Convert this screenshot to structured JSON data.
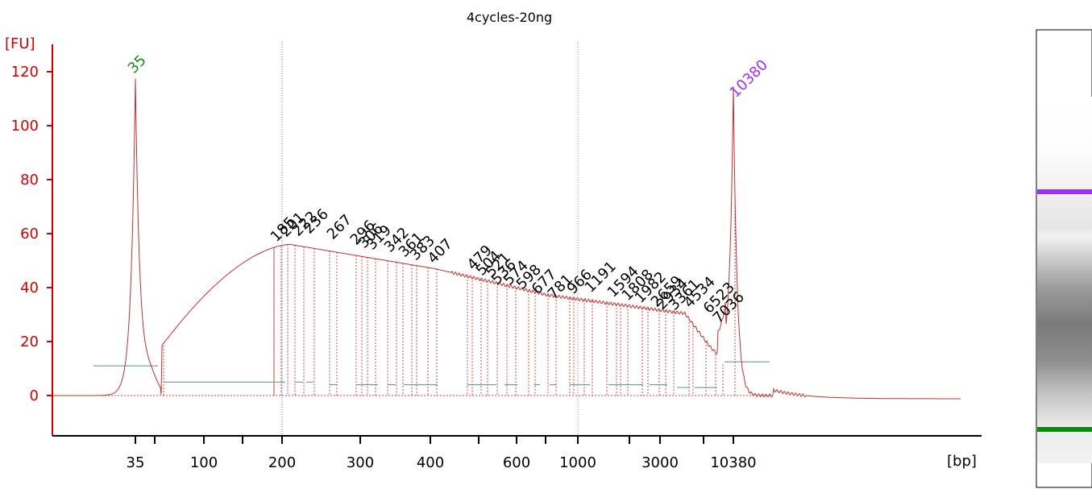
{
  "chart_data": {
    "type": "line",
    "title": "4cycles-20ng",
    "ylabel": "[FU]",
    "xlabel": "[bp]",
    "ylim": [
      -14,
      128
    ],
    "y_ticks": [
      0,
      20,
      40,
      60,
      80,
      100,
      120
    ],
    "x_tick_labels": [
      "35",
      "100",
      "200",
      "300",
      "400",
      "600",
      "1000",
      "3000",
      "10380"
    ],
    "grid": false,
    "marker_peaks": [
      {
        "label": "35",
        "fu": 118,
        "color": "#1a8a1a"
      },
      {
        "label": "10380",
        "fu": 108,
        "color": "#9b30ff"
      }
    ],
    "peak_labels": [
      "185",
      "201",
      "222",
      "236",
      "267",
      "296",
      "306",
      "319",
      "342",
      "361",
      "383",
      "407",
      "479",
      "504",
      "521",
      "536",
      "574",
      "598",
      "677",
      "781",
      "966",
      "1191",
      "1594",
      "1808",
      "1982",
      "2659",
      "2934",
      "3361",
      "4534",
      "6523",
      "7036"
    ],
    "series": [
      {
        "name": "",
        "color": "#c03030"
      }
    ]
  },
  "gel": {
    "upper_marker_color": "#9b30ff",
    "lower_marker_color": "#0a8a0a"
  }
}
